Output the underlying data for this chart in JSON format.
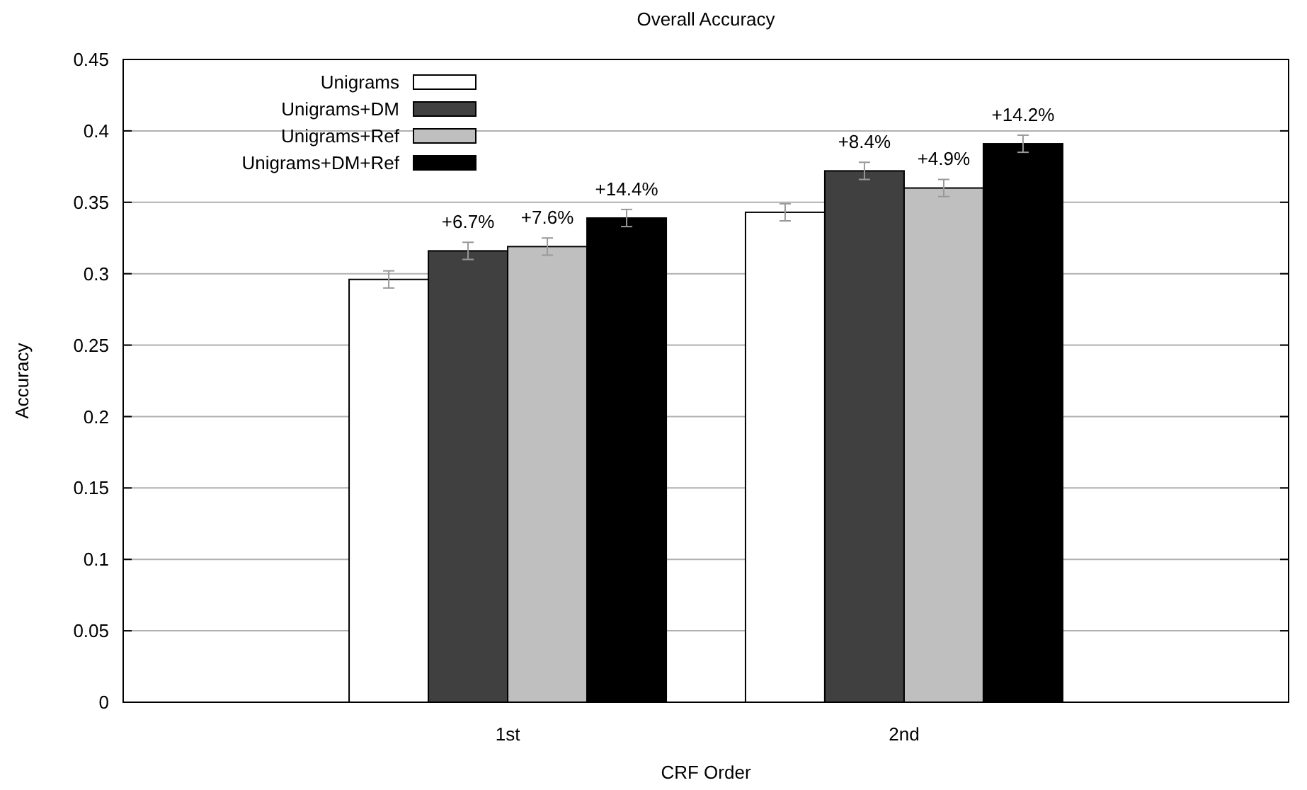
{
  "chart_data": {
    "type": "bar",
    "title": "Overall Accuracy",
    "xlabel": "CRF Order",
    "ylabel": "Accuracy",
    "categories": [
      "1st",
      "2nd"
    ],
    "series": [
      {
        "name": "Unigrams",
        "color": "#ffffff",
        "values": [
          0.296,
          0.343
        ],
        "errors": [
          0.006,
          0.006
        ]
      },
      {
        "name": "Unigrams+DM",
        "color": "#404040",
        "values": [
          0.316,
          0.372
        ],
        "errors": [
          0.006,
          0.006
        ]
      },
      {
        "name": "Unigrams+Ref",
        "color": "#bfbfbf",
        "values": [
          0.319,
          0.36
        ],
        "errors": [
          0.006,
          0.006
        ]
      },
      {
        "name": "Unigrams+DM+Ref",
        "color": "#000000",
        "values": [
          0.339,
          0.391
        ],
        "errors": [
          0.006,
          0.006
        ]
      }
    ],
    "annotations": [
      "+6.7%",
      "+7.6%",
      "+14.4%",
      "+8.4%",
      "+4.9%",
      "+14.2%"
    ],
    "ylim": [
      0,
      0.45
    ],
    "yticks": [
      0,
      0.05,
      0.1,
      0.15,
      0.2,
      0.25,
      0.3,
      0.35,
      0.4,
      0.45
    ],
    "grid": "y",
    "legend": "top left"
  }
}
